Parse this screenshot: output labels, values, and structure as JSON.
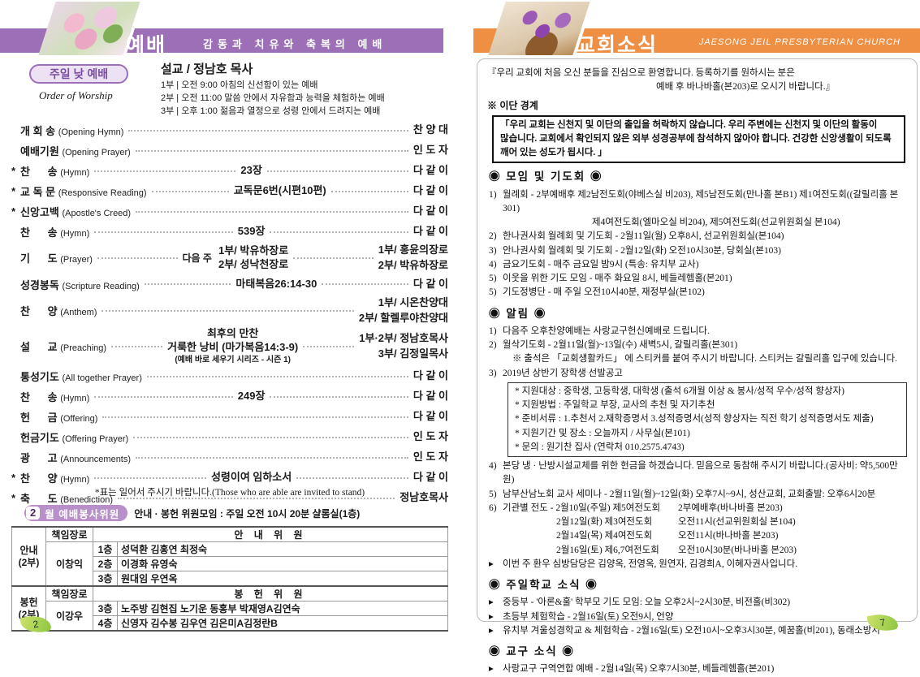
{
  "colors": {
    "purple": "#9d6fb6",
    "orange": "#ef8f43",
    "leaf_green": "#8cc63f",
    "badge_purple": "#b78fc9"
  },
  "page_left": {
    "header": {
      "title": "예배",
      "subtitle": "감동과 치유와 축복의 예배"
    },
    "badge": {
      "label": "주일 낮 예배",
      "sub": "Order of Worship"
    },
    "sermon": {
      "title": "설교 / 정남호 목사",
      "times": [
        "1부 | 오전  9:00   아침의 신선함이 있는 예배",
        "2부 | 오전 11:00   말씀 안에서 자유함과 능력을 체험하는 예배",
        "3부 | 오후  1:00   젊음과 열정으로 성령 안에서 드려지는 예배"
      ]
    },
    "order_rows": [
      {
        "star": false,
        "ko": "개 회 송",
        "en": "(Opening Hymn)",
        "center": [],
        "right": [
          "찬 양 대"
        ]
      },
      {
        "star": false,
        "ko": "예배기원",
        "en": "(Opening Prayer)",
        "center": [],
        "right": [
          "인 도 자"
        ]
      },
      {
        "star": true,
        "ko": "찬      송",
        "en": "(Hymn)",
        "center": [
          "23장"
        ],
        "right": [
          "다 같 이"
        ]
      },
      {
        "star": true,
        "ko": "교 독 문",
        "en": "(Responsive Reading)",
        "center": [
          "교독문6번(시편10편)"
        ],
        "right": [
          "다 같 이"
        ]
      },
      {
        "star": true,
        "ko": "신앙고백",
        "en": "(Apostle's Creed)",
        "center": [],
        "right": [
          "다 같 이"
        ]
      },
      {
        "star": false,
        "ko": "찬      송",
        "en": "(Hymn)",
        "center": [
          "539장"
        ],
        "right": [
          "다 같 이"
        ]
      },
      {
        "star": false,
        "ko": "기      도",
        "en": "(Prayer)",
        "center_prefix": "다음 주",
        "center": [
          "1부/ 박유하장로",
          "2부/ 성낙천장로"
        ],
        "right": [
          "1부/ 홍윤의장로",
          "2부/ 박유하장로"
        ]
      },
      {
        "star": false,
        "ko": "성경봉독",
        "en": "(Scripture Reading)",
        "center": [
          "마태복음26:14-30"
        ],
        "right": [
          "다 같 이"
        ]
      },
      {
        "star": false,
        "ko": "찬      양",
        "en": "(Anthem)",
        "center": [],
        "right": [
          "1부/ 시온찬양대",
          "2부/ 할렐루야찬양대"
        ]
      },
      {
        "star": false,
        "ko": "설      교",
        "en": "(Preaching)",
        "center": [
          "최후의 만찬",
          "거룩한 낭비 (마가복음14:3-9)"
        ],
        "center_small": "(예배 바로 세우기 시리즈 - 시즌 1)",
        "right": [
          "1부·2부/ 정남호목사",
          "3부/ 김정일목사"
        ]
      },
      {
        "star": false,
        "ko": "통성기도",
        "en": "(All together Prayer)",
        "center": [],
        "right": [
          "다 같 이"
        ]
      },
      {
        "star": false,
        "ko": "찬      송",
        "en": "(Hymn)",
        "center": [
          "249장"
        ],
        "right": [
          "다 같 이"
        ]
      },
      {
        "star": false,
        "ko": "헌      금",
        "en": "(Offering)",
        "center": [],
        "right": [
          "다 같 이"
        ]
      },
      {
        "star": false,
        "ko": "헌금기도",
        "en": "(Offering Prayer)",
        "center": [],
        "right": [
          "인 도 자"
        ]
      },
      {
        "star": false,
        "ko": "광      고",
        "en": "(Announcements)",
        "center": [],
        "right": [
          "인 도 자"
        ]
      },
      {
        "star": true,
        "ko": "찬      양",
        "en": "(Hymn)",
        "center": [
          "성령이여 임하소서"
        ],
        "right": [
          "다 같 이"
        ]
      },
      {
        "star": true,
        "ko": "축      도",
        "en": "(Benediction)",
        "center": [],
        "right": [
          "정남호목사"
        ]
      }
    ],
    "footnote": "*표는 일어서 주시기 바랍니다.(Those who are able are invited to stand)",
    "committee": {
      "month": "2",
      "badge": "월 예배봉사위원",
      "note": "안내 · 봉헌 위원모임 : 주일 오전 10시 20분 샬롬실(1층)",
      "elder_label": "책임장로",
      "groups": [
        {
          "name": "안내 (2부)",
          "elder": "이창익",
          "header": "안 내 위 원",
          "rows": [
            [
              "1층",
              "성덕환 김홍연 최정숙"
            ],
            [
              "2층",
              "이경화 유영숙"
            ],
            [
              "3층",
              "원대임 우연옥"
            ]
          ]
        },
        {
          "name": "봉헌 (2부)",
          "elder": "이강우",
          "header": "봉 헌 위 원",
          "rows": [
            [
              "3층",
              "노주방 김현집 노기운 동홍부 박재영A김연숙"
            ],
            [
              "4층",
              "신영자 김수봉 김우연 김은미A김정란B"
            ]
          ]
        }
      ]
    },
    "page_number": "2"
  },
  "page_right": {
    "header": {
      "title": "교회소식",
      "church": "JAESONG JEIL PRESBYTERIAN CHURCH"
    },
    "welcome_line1": "『우리 교회에 처음 오신 분들을 진심으로 환영합니다. 등록하기를 원하시는 분은",
    "welcome_line2": "예배 후 바나바홀(본203)로 오시기 바랍니다.』",
    "heresy_title": "※ 이단 경계",
    "heresy_lines": [
      "「우리 교회는 신천지 및 이단의 출입을 허락하지 않습니다. 우리 주변에는 신천지 및 이단의 활동이",
      "많습니다. 교회에서 확인되지 않은 외부 성경공부에 참석하지 않아야 합니다. 건강한 신앙생활이 되도록",
      "깨어 있는 성도가 됩시다. 」"
    ],
    "sections": [
      {
        "title": "◉  모임 및 기도회  ◉",
        "items": [
          {
            "pfx": "1)",
            "text": "월례회 - 2부예배후 제2남전도회(야베스실 비203), 제5남전도회(만나홀 본B1) 제1여전도회((갈릴리홀 본301)",
            "cont": [
              "제4여전도회(엘마오실 비204), 제5여전도회(선교위원회실 본104)"
            ]
          },
          {
            "pfx": "2)",
            "text": "한나권사회 월례회 및 기도회 - 2월11일(월) 오후8시, 선교위원회실(본104)"
          },
          {
            "pfx": "3)",
            "text": "안나권사회 월례회 및 기도회 - 2월12일(화) 오전10시30분, 당회실(본103)"
          },
          {
            "pfx": "4)",
            "text": "금요기도회 - 매주 금요일 밤9시 (특송: 유치부 교사)"
          },
          {
            "pfx": "5)",
            "text": "이웃을 위한 기도 모임 - 매주 화요일 8시, 베들레헴홀(본201)"
          },
          {
            "pfx": "5)",
            "text": "기도정병단 - 매 주일 오전10시40분, 재정부실(본102)"
          }
        ]
      },
      {
        "title": "◉  알림  ◉",
        "items": [
          {
            "pfx": "1)",
            "text": "다음주 오후찬양예배는 사랑교구헌신예배로 드립니다."
          },
          {
            "pfx": "2)",
            "text": "월삭기도회 - 2월11일(월)~13일(수) 새벽5시, 갈릴리홀(본301)",
            "cont_sub": [
              "※ 출석은 「교회생활카드」 에 스티커를 붙여 주시기 바랍니다. 스티커는 갈릴리홀 입구에 있습니다."
            ]
          },
          {
            "pfx": "3)",
            "text": "2019년 상반기 장학생 선발공고",
            "box": [
              "* 지원대상 : 중학생, 고등학생, 대학생 (출석 6개월 이상 & 봉사/성적 우수/성적 향상자)",
              "* 지원방법 : 주일학교 부장, 교사의 추천 및 자기추천",
              "* 준비서류 : 1.추천서 2.재학증명서 3.성적증명서(성적 향상자는 직전 학기 성적증명서도 제출)",
              "* 지원기간 및 장소 : 오늘까지 / 사무실(본101)",
              "* 문의 : 원기찬 집사 (연락처 010.2575.4743)"
            ]
          },
          {
            "pfx": "4)",
            "text": "본당 냉 · 난방시설교체를 위한 헌금을 하겠습니다. 믿음으로 동참해 주시기 바랍니다.(공사비: 약5,500만원)"
          },
          {
            "pfx": "5)",
            "text": "남부산남노회 교사 세미나 - 2월11일(월)~12일(화) 오후7시~9시, 성산교회, 교회출발: 오후6시20분"
          },
          {
            "pfx": "6)",
            "rows": [
              [
                "기관별 전도 - 2월10일(주일) 제5여전도회",
                "2부예배후(바나바홀 본203)"
              ],
              [
                "2월12일(화) 제3여전도회",
                "오전11시(선교위원회실 본104)"
              ],
              [
                "2월14일(목) 제4여전도회",
                "오전11시(바나바홀 본203)"
              ],
              [
                "2월16일(토) 제6,7여전도회",
                "오전10시30분(바나바홀 본203)"
              ]
            ]
          },
          {
            "pfx": "▸",
            "text": "이번 주 환우 심방담당은 김양옥, 전영옥, 원연자, 김경희A, 이혜자권사입니다."
          }
        ]
      },
      {
        "title": "◉  주일학교 소식  ◉",
        "items": [
          {
            "pfx": "▸",
            "text": "중등부 - '아론&훌' 학부모 기도 모임: 오늘 오후2시~2시30분, 비전홀(비302)"
          },
          {
            "pfx": "▸",
            "text": "초등부 체험학습 - 2월16일(토) 오전9시, 언양"
          },
          {
            "pfx": "▸",
            "text": "유치부 겨울성경학교 & 체험학습 - 2월16일(토) 오전10시~오후3시30분, 예꿈홀(비201), 동래소방서"
          }
        ]
      },
      {
        "title": "◉  교구 소식  ◉",
        "items": [
          {
            "pfx": "▸",
            "text": "사랑교구 구역연합 예배 - 2월14일(목) 오후7시30분, 베들레헴홀(본201)"
          }
        ]
      }
    ],
    "page_number": "7"
  }
}
